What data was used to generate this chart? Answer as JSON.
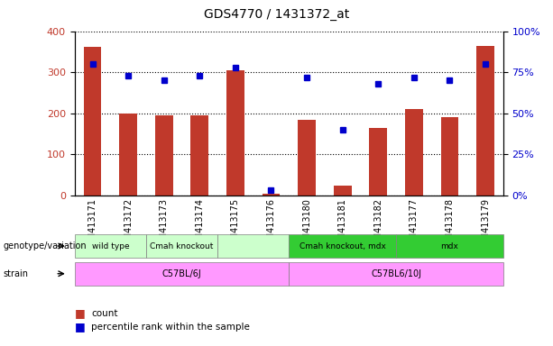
{
  "title": "GDS4770 / 1431372_at",
  "samples": [
    "GSM413171",
    "GSM413172",
    "GSM413173",
    "GSM413174",
    "GSM413175",
    "GSM413176",
    "GSM413180",
    "GSM413181",
    "GSM413182",
    "GSM413177",
    "GSM413178",
    "GSM413179"
  ],
  "counts": [
    362,
    200,
    195,
    195,
    305,
    5,
    185,
    25,
    165,
    210,
    190,
    365
  ],
  "percentiles": [
    80,
    73,
    70,
    73,
    78,
    3,
    72,
    40,
    68,
    72,
    70,
    80
  ],
  "bar_color": "#C0392B",
  "dot_color": "#0000CC",
  "left_ylim": [
    0,
    400
  ],
  "right_ylim": [
    0,
    100
  ],
  "left_yticks": [
    0,
    100,
    200,
    300,
    400
  ],
  "right_yticks": [
    0,
    25,
    50,
    75,
    100
  ],
  "right_yticklabels": [
    "0%",
    "25%",
    "50%",
    "75%",
    "100%"
  ],
  "geno_groups": [
    {
      "label": "wild type",
      "start": 0,
      "end": 1,
      "color": "#CCFFCC"
    },
    {
      "label": "Cmah knockout",
      "start": 2,
      "end": 3,
      "color": "#CCFFCC"
    },
    {
      "label": "",
      "start": 4,
      "end": 5,
      "color": "#CCFFCC"
    },
    {
      "label": "Cmah knockout, mdx",
      "start": 6,
      "end": 8,
      "color": "#33CC33"
    },
    {
      "label": "mdx",
      "start": 9,
      "end": 11,
      "color": "#33CC33"
    }
  ],
  "strain_groups": [
    {
      "label": "C57BL/6J",
      "start": 0,
      "end": 5,
      "color": "#FF99FF"
    },
    {
      "label": "C57BL6/10J",
      "start": 6,
      "end": 11,
      "color": "#FF99FF"
    }
  ],
  "genotype_label": "genotype/variation",
  "strain_label": "strain",
  "legend_count_label": "count",
  "legend_pct_label": "percentile rank within the sample"
}
